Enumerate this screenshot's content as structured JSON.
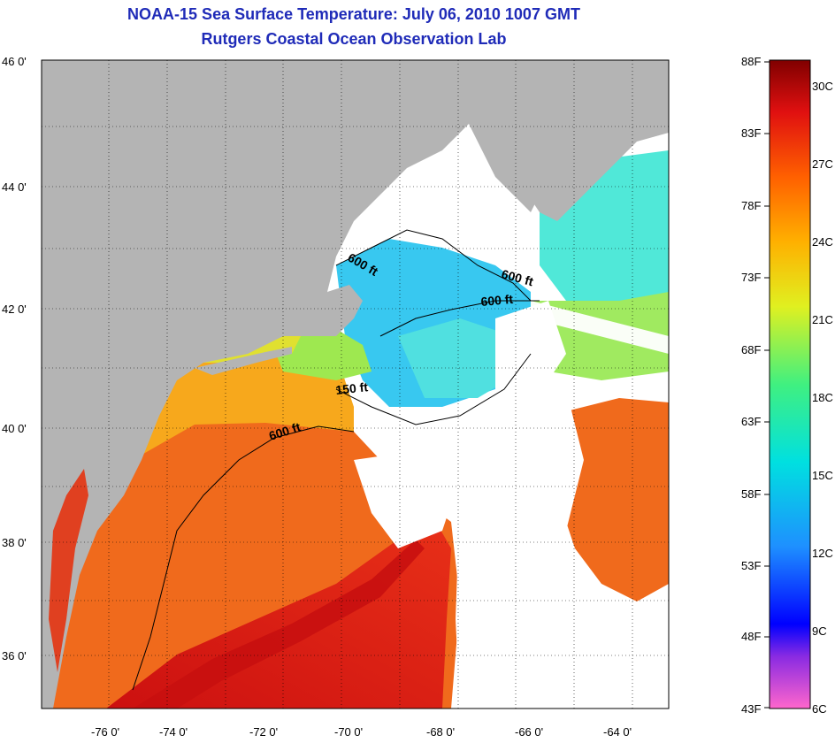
{
  "title_line1": "NOAA-15 Sea Surface Temperature:  July 06, 2010 1007 GMT",
  "title_line2": "Rutgers Coastal Ocean Observation Lab",
  "lon_ticks": [
    "-76 0'",
    "-74 0'",
    "-72 0'",
    "-70 0'",
    "-68 0'",
    "-66 0'",
    "-64 0'"
  ],
  "lat_ticks": [
    "46 0'",
    "44 0'",
    "42 0'",
    "40 0'",
    "38 0'",
    "36 0'"
  ],
  "isobaths": [
    "600 ft",
    "600 ft",
    "600 ft",
    "150 ft",
    "600 ft"
  ],
  "colorbar": {
    "f_labels": [
      "88F",
      "83F",
      "78F",
      "73F",
      "68F",
      "63F",
      "58F",
      "53F",
      "48F",
      "43F"
    ],
    "c_labels": [
      "30C",
      "27C",
      "24C",
      "21C",
      "18C",
      "15C",
      "12C",
      "9C",
      "6C"
    ]
  },
  "colors": {
    "land": "#b4b4b4",
    "title": "#1f2bb8",
    "cloud": "#ffffff",
    "warm": "#e8281a",
    "hot": "#d41812"
  }
}
